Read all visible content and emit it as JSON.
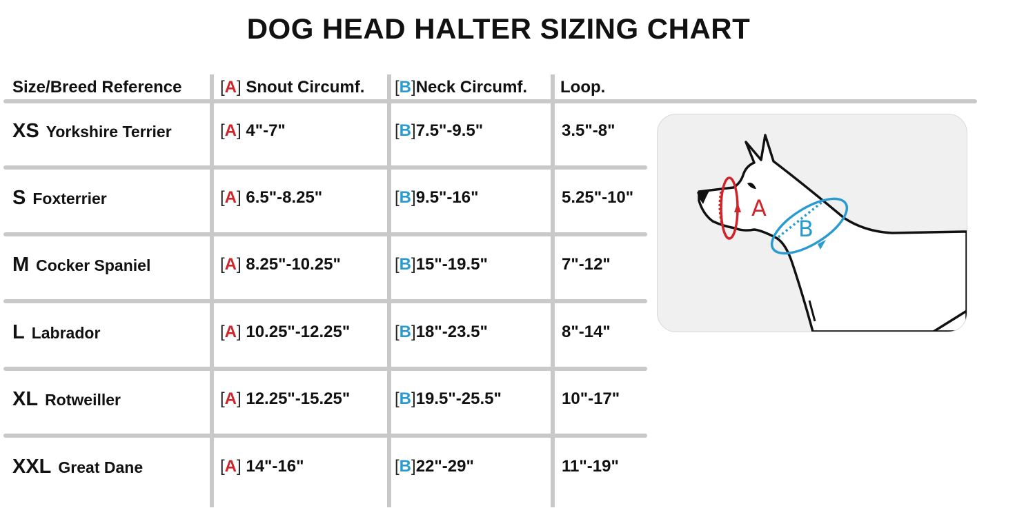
{
  "title": "DOG HEAD HALTER SIZING CHART",
  "headers": {
    "size_breed": "Size/Breed Reference",
    "snout_marker": "A",
    "snout": "Snout Circumf.",
    "neck_marker": "B",
    "neck": "Neck Circumf.",
    "loop": "Loop."
  },
  "rows": [
    {
      "size": "XS",
      "breed": "Yorkshire Terrier",
      "snout": "4\"-7\"",
      "neck": "7.5\"-9.5\"",
      "loop": "3.5\"-8\""
    },
    {
      "size": "S",
      "breed": "Foxterrier",
      "snout": "6.5\"-8.25\"",
      "neck": "9.5\"-16\"",
      "loop": "5.25\"-10\""
    },
    {
      "size": "M",
      "breed": "Cocker Spaniel",
      "snout": "8.25\"-10.25\"",
      "neck": "15\"-19.5\"",
      "loop": "7\"-12\""
    },
    {
      "size": "L",
      "breed": "Labrador",
      "snout": "10.25\"-12.25\"",
      "neck": "18\"-23.5\"",
      "loop": "8\"-14\""
    },
    {
      "size": "XL",
      "breed": "Rotweiller",
      "snout": "12.25\"-15.25\"",
      "neck": "19.5\"-25.5\"",
      "loop": "10\"-17\""
    },
    {
      "size": "XXL",
      "breed": "Great Dane",
      "snout": "14\"-16\"",
      "neck": "22\"-29\"",
      "loop": "11\"-19\""
    }
  ],
  "diagram": {
    "label_a": "A",
    "label_b": "B"
  },
  "colors": {
    "a": "#d0232a",
    "b": "#2a9bd1",
    "divider": "#c9c9c9",
    "panel": "#f1f0f1"
  }
}
